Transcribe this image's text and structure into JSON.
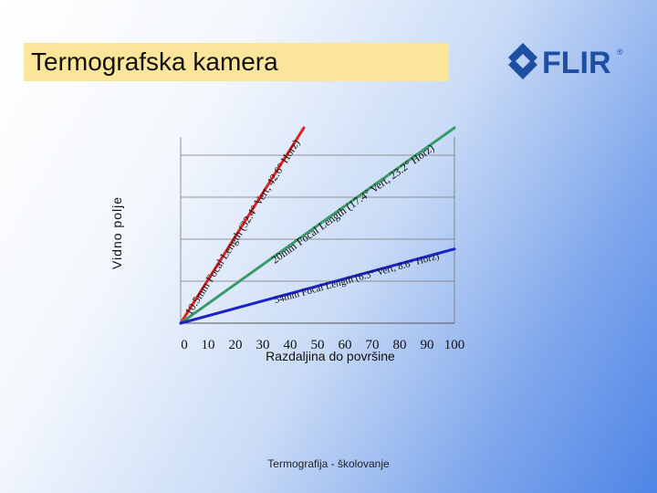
{
  "slide": {
    "title": "Termografska kamera",
    "footer": "Termografija - školovanje"
  },
  "logo": {
    "text": "FLIR",
    "registered": "®",
    "color": "#1f4fa3"
  },
  "chart_data": {
    "type": "line",
    "title": "",
    "xlabel": "Razdaljina do površine",
    "ylabel": "Vidno polje",
    "xlim": [
      0,
      100
    ],
    "ylim": [
      0,
      100
    ],
    "x_ticks": [
      "0",
      "10",
      "20",
      "30",
      "40",
      "50",
      "60",
      "70",
      "80",
      "90",
      "100"
    ],
    "grid": true,
    "series": [
      {
        "name": "10.5mm Focal Length (32.4° Vert, 42.6° Horz)",
        "color": "#e02020",
        "x": [
          0,
          45
        ],
        "y": [
          0,
          100
        ]
      },
      {
        "name": "20mm Focal Length (17.4° Vert, 23.2° Horz)",
        "color": "#3a9a6a",
        "x": [
          0,
          100
        ],
        "y": [
          0,
          100
        ]
      },
      {
        "name": "54mm Focal Length (6.3° Vert, 8.6° Horz)",
        "color": "#1a22c8",
        "x": [
          0,
          100
        ],
        "y": [
          0,
          38
        ]
      }
    ]
  }
}
